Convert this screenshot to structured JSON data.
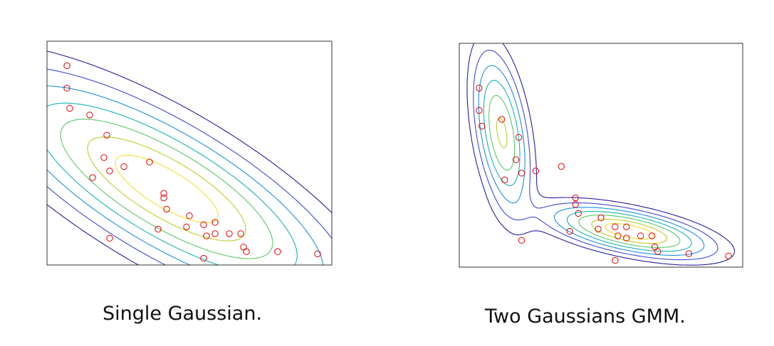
{
  "chart_data": [
    {
      "type": "scatter",
      "contour_overlay": "single gaussian density contours",
      "caption": "Single Gaussian.",
      "points_color": "#e00000",
      "contour_colormap": [
        "#2a1d9e",
        "#3f49d6",
        "#1f8fe0",
        "#19b3b3",
        "#5cc86a",
        "#c2cc2e",
        "#f0e030"
      ],
      "xlim": [
        0,
        100
      ],
      "ylim": [
        0,
        100
      ],
      "points": [
        {
          "x": 7,
          "y": 89
        },
        {
          "x": 7,
          "y": 79
        },
        {
          "x": 8,
          "y": 70
        },
        {
          "x": 15,
          "y": 67
        },
        {
          "x": 21,
          "y": 58
        },
        {
          "x": 20,
          "y": 48
        },
        {
          "x": 22,
          "y": 42
        },
        {
          "x": 27,
          "y": 44
        },
        {
          "x": 16,
          "y": 39
        },
        {
          "x": 36,
          "y": 46
        },
        {
          "x": 41,
          "y": 32
        },
        {
          "x": 41,
          "y": 30
        },
        {
          "x": 42,
          "y": 25
        },
        {
          "x": 39,
          "y": 16
        },
        {
          "x": 50,
          "y": 22
        },
        {
          "x": 49,
          "y": 17
        },
        {
          "x": 55,
          "y": 18
        },
        {
          "x": 56,
          "y": 13
        },
        {
          "x": 59,
          "y": 19
        },
        {
          "x": 59,
          "y": 14
        },
        {
          "x": 64,
          "y": 14
        },
        {
          "x": 68,
          "y": 14
        },
        {
          "x": 69,
          "y": 8
        },
        {
          "x": 70,
          "y": 6
        },
        {
          "x": 22,
          "y": 12
        },
        {
          "x": 55,
          "y": 3
        },
        {
          "x": 81,
          "y": 6
        },
        {
          "x": 95,
          "y": 5
        }
      ],
      "gaussians": [
        {
          "mean": [
            42,
            34
          ],
          "cov": [
            [
              1000,
              -650
            ],
            [
              -650,
              700
            ]
          ]
        }
      ],
      "contour_levels": [
        0.05,
        0.12,
        0.22,
        0.35,
        0.5,
        0.68,
        0.85
      ]
    },
    {
      "type": "scatter",
      "contour_overlay": "two-component GMM density contours",
      "caption": "Two Gaussians GMM.",
      "points_color": "#e00000",
      "contour_colormap": [
        "#2a1d9e",
        "#3f49d6",
        "#1f8fe0",
        "#19b3b3",
        "#5cc86a",
        "#c2cc2e",
        "#f0e030"
      ],
      "xlim": [
        0,
        100
      ],
      "ylim": [
        0,
        100
      ],
      "points": [
        {
          "x": 7,
          "y": 80
        },
        {
          "x": 7,
          "y": 70
        },
        {
          "x": 8,
          "y": 63
        },
        {
          "x": 15,
          "y": 66
        },
        {
          "x": 21,
          "y": 58
        },
        {
          "x": 20,
          "y": 48
        },
        {
          "x": 22,
          "y": 42
        },
        {
          "x": 27,
          "y": 43
        },
        {
          "x": 16,
          "y": 39
        },
        {
          "x": 36,
          "y": 45
        },
        {
          "x": 41,
          "y": 31
        },
        {
          "x": 41,
          "y": 28
        },
        {
          "x": 42,
          "y": 24
        },
        {
          "x": 39,
          "y": 16
        },
        {
          "x": 50,
          "y": 22
        },
        {
          "x": 49,
          "y": 17
        },
        {
          "x": 55,
          "y": 18
        },
        {
          "x": 56,
          "y": 14
        },
        {
          "x": 59,
          "y": 18
        },
        {
          "x": 59,
          "y": 13
        },
        {
          "x": 64,
          "y": 14
        },
        {
          "x": 68,
          "y": 14
        },
        {
          "x": 69,
          "y": 9
        },
        {
          "x": 70,
          "y": 7
        },
        {
          "x": 22,
          "y": 12
        },
        {
          "x": 55,
          "y": 3
        },
        {
          "x": 81,
          "y": 6
        },
        {
          "x": 95,
          "y": 5
        }
      ],
      "gaussians": [
        {
          "weight": 0.47,
          "mean": [
            15,
            60
          ],
          "cov": [
            [
              28,
              -45
            ],
            [
              -45,
              380
            ]
          ]
        },
        {
          "weight": 0.53,
          "mean": [
            60,
            16
          ],
          "cov": [
            [
              230,
              -55
            ],
            [
              -55,
              38
            ]
          ]
        }
      ],
      "contour_levels": [
        0.05,
        0.12,
        0.22,
        0.35,
        0.5,
        0.68,
        0.85
      ]
    }
  ]
}
